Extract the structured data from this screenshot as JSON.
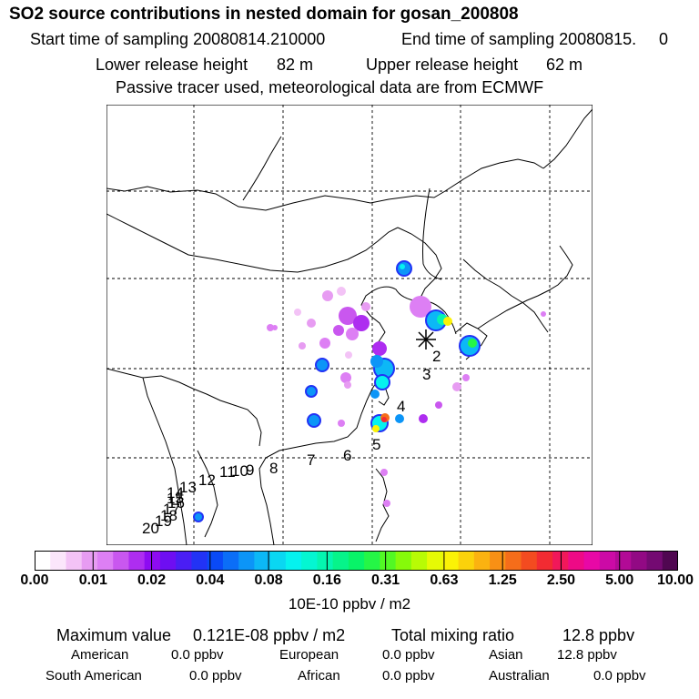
{
  "header": {
    "title": "SO2 source contributions in nested domain for gosan_200808",
    "start_label": "Start time of sampling 20080814.210000",
    "end_label": "End time of sampling 20080815.",
    "end_value": "0",
    "lower_label": "Lower release height",
    "lower_value": "82 m",
    "upper_label": "Upper release height",
    "upper_value": "62 m",
    "info": "Passive tracer used, meteorological data are from ECMWF"
  },
  "map": {
    "receptor": "gosan",
    "trajectory_labels": [
      "2",
      "3",
      "4",
      "5",
      "6",
      "7",
      "8",
      "9",
      "10",
      "11",
      "12",
      "13",
      "14",
      "15",
      "16",
      "17",
      "18",
      "19",
      "20"
    ]
  },
  "colorbar": {
    "ticks": [
      "0.00",
      "0.01",
      "0.02",
      "0.04",
      "0.08",
      "0.16",
      "0.31",
      "0.63",
      "1.25",
      "2.50",
      "5.00",
      "10.00"
    ],
    "colors": [
      "#ffffff",
      "#fbe6fb",
      "#f3c3f6",
      "#e79cf2",
      "#dd7ff4",
      "#c957ef",
      "#ae2df0",
      "#8d0bf2",
      "#6e0ef2",
      "#4a1ef4",
      "#2233f5",
      "#0a4af7",
      "#0b6ef7",
      "#0c95f7",
      "#0cb8f6",
      "#0ad7f2",
      "#05f2ef",
      "#04f6d2",
      "#05f5b0",
      "#06f48a",
      "#08f368",
      "#25f646",
      "#52f824",
      "#86fa0a",
      "#b8fb05",
      "#e6fa05",
      "#fbf206",
      "#fbd20b",
      "#fbb210",
      "#f89015",
      "#f56d1a",
      "#f34b20",
      "#f22b32",
      "#f1185a",
      "#ee0a86",
      "#e808a6",
      "#cc0aa6",
      "#b20a96",
      "#920984",
      "#740a72",
      "#500751"
    ],
    "units": "10E-10 ppbv / m2"
  },
  "summary": {
    "max_label": "Maximum value",
    "max_value": "0.121E-08 ppbv / m2",
    "total_label": "Total mixing ratio",
    "total_value": "12.8 ppbv",
    "regions": [
      {
        "name": "American",
        "value": "0.0 ppbv"
      },
      {
        "name": "European",
        "value": "0.0 ppbv"
      },
      {
        "name": "Asian",
        "value": "12.8 ppbv"
      },
      {
        "name": "South American",
        "value": "0.0 ppbv"
      },
      {
        "name": "African",
        "value": "0.0 ppbv"
      },
      {
        "name": "Australian",
        "value": "0.0 ppbv"
      }
    ]
  }
}
